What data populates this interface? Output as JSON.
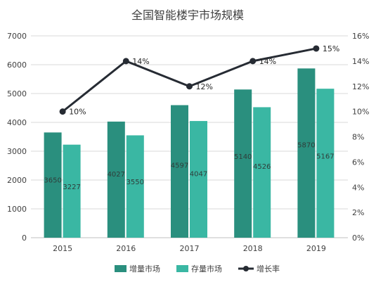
{
  "chart_data": {
    "type": "bar",
    "title": "全国智能楼宇市场规模",
    "categories": [
      "2015",
      "2016",
      "2017",
      "2018",
      "2019"
    ],
    "series": [
      {
        "name": "增量市场",
        "kind": "bar",
        "axis": "left",
        "color": "#2a8f7e",
        "values": [
          3650,
          4027,
          4597,
          5140,
          5870
        ],
        "labels": [
          "3650",
          "4027",
          "4597",
          "5140",
          "5870"
        ]
      },
      {
        "name": "存量市场",
        "kind": "bar",
        "axis": "left",
        "color": "#3ab7a3",
        "values": [
          3227,
          3550,
          4047,
          4526,
          5167
        ],
        "labels": [
          "3227",
          "3550",
          "4047",
          "4526",
          "5167"
        ]
      },
      {
        "name": "增长率",
        "kind": "line",
        "axis": "right",
        "color": "#262b33",
        "values": [
          10,
          14,
          12,
          14,
          15
        ],
        "labels": [
          "10%",
          "14%",
          "12%",
          "14%",
          "15%"
        ]
      }
    ],
    "ylim": [
      0,
      7000
    ],
    "yticks": [
      "0",
      "1000",
      "2000",
      "3000",
      "4000",
      "5000",
      "6000",
      "7000"
    ],
    "y2lim": [
      0,
      16
    ],
    "y2ticks": [
      "0%",
      "2%",
      "4%",
      "6%",
      "8%",
      "10%",
      "12%",
      "14%",
      "16%"
    ],
    "grid": true,
    "legend_position": "bottom"
  }
}
